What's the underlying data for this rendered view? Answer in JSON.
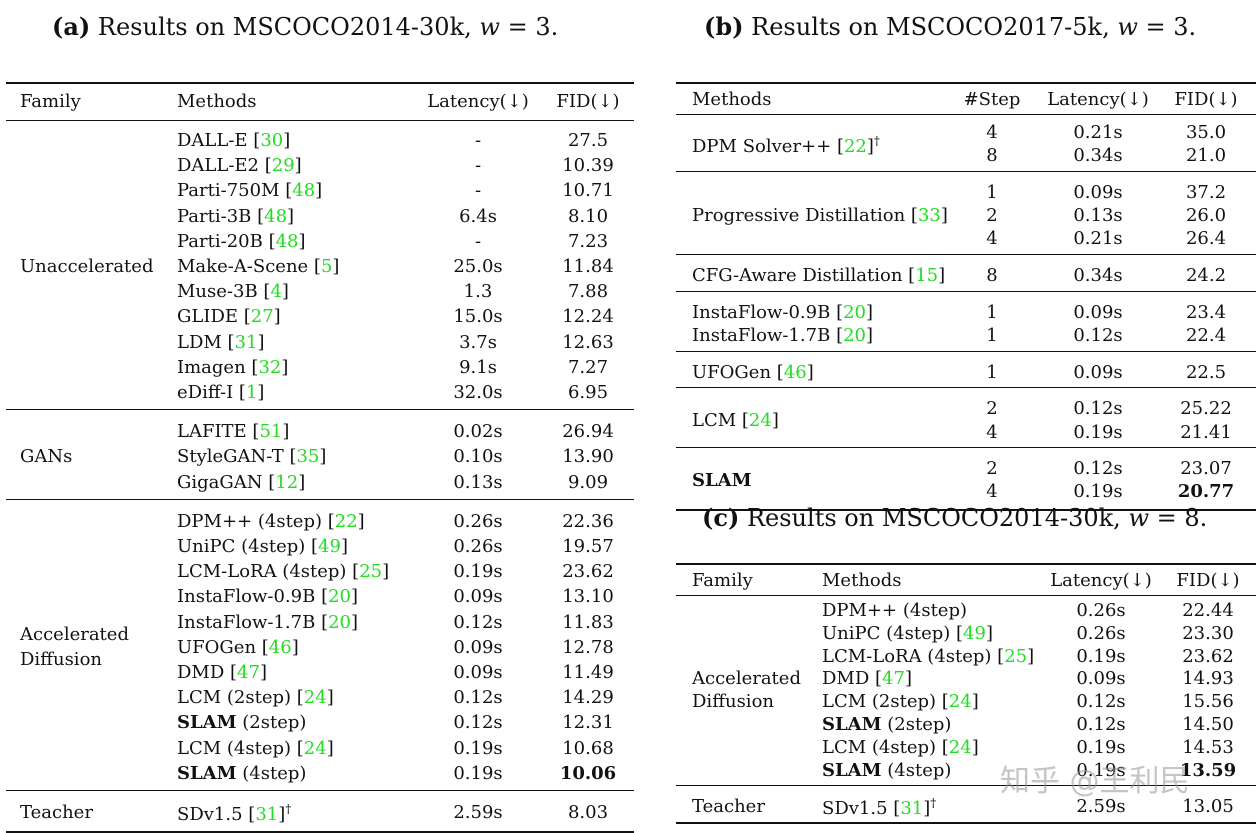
{
  "table_a": {
    "caption_tag": "(a)",
    "caption_text": "Results on MSCOCO2014-30k,",
    "caption_w": "w",
    "caption_eq": "= 3.",
    "headers": [
      "Family",
      "Methods",
      "Latency(↓)",
      "FID(↓)"
    ],
    "groups": [
      {
        "family": "Unaccelerated",
        "rows": [
          {
            "method": "DALL-E",
            "cite": "30",
            "latency": "-",
            "fid": "27.5"
          },
          {
            "method": "DALL-E2",
            "cite": "29",
            "latency": "-",
            "fid": "10.39"
          },
          {
            "method": "Parti-750M",
            "cite": "48",
            "latency": "-",
            "fid": "10.71"
          },
          {
            "method": "Parti-3B",
            "cite": "48",
            "latency": "6.4s",
            "fid": "8.10"
          },
          {
            "method": "Parti-20B",
            "cite": "48",
            "latency": "-",
            "fid": "7.23"
          },
          {
            "method": "Make-A-Scene",
            "cite": "5",
            "latency": "25.0s",
            "fid": "11.84"
          },
          {
            "method": "Muse-3B",
            "cite": "4",
            "latency": "1.3",
            "fid": "7.88"
          },
          {
            "method": "GLIDE",
            "cite": "27",
            "latency": "15.0s",
            "fid": "12.24"
          },
          {
            "method": "LDM",
            "cite": "31",
            "latency": "3.7s",
            "fid": "12.63"
          },
          {
            "method": "Imagen",
            "cite": "32",
            "latency": "9.1s",
            "fid": "7.27"
          },
          {
            "method": "eDiff-I",
            "cite": "1",
            "latency": "32.0s",
            "fid": "6.95"
          }
        ]
      },
      {
        "family": "GANs",
        "rows": [
          {
            "method": "LAFITE",
            "cite": "51",
            "latency": "0.02s",
            "fid": "26.94"
          },
          {
            "method": "StyleGAN-T",
            "cite": "35",
            "latency": "0.10s",
            "fid": "13.90"
          },
          {
            "method": "GigaGAN",
            "cite": "12",
            "latency": "0.13s",
            "fid": "9.09"
          }
        ]
      },
      {
        "family": "Accelerated",
        "family2": "Diffusion",
        "rows": [
          {
            "method": "DPM++ (4step)",
            "cite": "22",
            "latency": "0.26s",
            "fid": "22.36"
          },
          {
            "method": "UniPC (4step)",
            "cite": "49",
            "latency": "0.26s",
            "fid": "19.57"
          },
          {
            "method": "LCM-LoRA (4step)",
            "cite": "25",
            "latency": "0.19s",
            "fid": "23.62"
          },
          {
            "method": "InstaFlow-0.9B",
            "cite": "20",
            "latency": "0.09s",
            "fid": "13.10"
          },
          {
            "method": "InstaFlow-1.7B",
            "cite": "20",
            "latency": "0.12s",
            "fid": "11.83"
          },
          {
            "method": "UFOGen",
            "cite": "46",
            "latency": "0.09s",
            "fid": "12.78"
          },
          {
            "method": "DMD",
            "cite": "47",
            "latency": "0.09s",
            "fid": "11.49"
          },
          {
            "method": "LCM (2step)",
            "cite": "24",
            "latency": "0.12s",
            "fid": "14.29"
          },
          {
            "method_bold": "SLAM",
            "method_rest": " (2step)",
            "latency": "0.12s",
            "fid": "12.31"
          },
          {
            "method": "LCM (4step)",
            "cite": "24",
            "latency": "0.19s",
            "fid": "10.68"
          },
          {
            "method_bold": "SLAM",
            "method_rest": " (4step)",
            "latency": "0.19s",
            "fid": "10.06",
            "fid_bold": true
          }
        ]
      },
      {
        "family": "Teacher",
        "rows": [
          {
            "method": "SDv1.5",
            "cite": "31",
            "dagger": "†",
            "latency": "2.59s",
            "fid": "8.03"
          }
        ]
      }
    ]
  },
  "table_b": {
    "caption_tag": "(b)",
    "caption_text": "Results on MSCOCO2017-5k,",
    "caption_w": "w",
    "caption_eq": "= 3.",
    "headers": [
      "Methods",
      "#Step",
      "Latency(↓)",
      "FID(↓)"
    ],
    "groups": [
      {
        "method": "DPM Solver++",
        "cite": "22",
        "dagger": "†",
        "rows": [
          {
            "step": "4",
            "latency": "0.21s",
            "fid": "35.0"
          },
          {
            "step": "8",
            "latency": "0.34s",
            "fid": "21.0"
          }
        ]
      },
      {
        "method": "Progressive Distillation",
        "cite": "33",
        "rows": [
          {
            "step": "1",
            "latency": "0.09s",
            "fid": "37.2"
          },
          {
            "step": "2",
            "latency": "0.13s",
            "fid": "26.0"
          },
          {
            "step": "4",
            "latency": "0.21s",
            "fid": "26.4"
          }
        ]
      },
      {
        "method": "CFG-Aware Distillation",
        "cite": "15",
        "rows": [
          {
            "step": "8",
            "latency": "0.34s",
            "fid": "24.2"
          }
        ]
      },
      {
        "method": "InstaFlow-0.9B",
        "cite": "20",
        "method2": "InstaFlow-1.7B",
        "cite2": "20",
        "rows": [
          {
            "step": "1",
            "latency": "0.09s",
            "fid": "23.4"
          },
          {
            "step": "1",
            "latency": "0.12s",
            "fid": "22.4"
          }
        ]
      },
      {
        "method": "UFOGen",
        "cite": "46",
        "rows": [
          {
            "step": "1",
            "latency": "0.09s",
            "fid": "22.5"
          }
        ]
      },
      {
        "method": "LCM",
        "cite": "24",
        "rows": [
          {
            "step": "2",
            "latency": "0.12s",
            "fid": "25.22"
          },
          {
            "step": "4",
            "latency": "0.19s",
            "fid": "21.41"
          }
        ]
      },
      {
        "method_bold": "SLAM",
        "rows": [
          {
            "step": "2",
            "latency": "0.12s",
            "fid": "23.07"
          },
          {
            "step": "4",
            "latency": "0.19s",
            "fid": "20.77",
            "fid_bold": true
          }
        ]
      }
    ]
  },
  "table_c": {
    "caption_tag": "(c)",
    "caption_text": "Results on MSCOCO2014-30k,",
    "caption_w": "w",
    "caption_eq": "= 8.",
    "headers": [
      "Family",
      "Methods",
      "Latency(↓)",
      "FID(↓)"
    ],
    "groups": [
      {
        "family": "Accelerated",
        "family2": "Diffusion",
        "rows": [
          {
            "method": "DPM++ (4step)",
            "latency": "0.26s",
            "fid": "22.44"
          },
          {
            "method": "UniPC (4step)",
            "cite": "49",
            "latency": "0.26s",
            "fid": "23.30"
          },
          {
            "method": "LCM-LoRA (4step)",
            "cite": "25",
            "latency": "0.19s",
            "fid": "23.62"
          },
          {
            "method": "DMD",
            "cite": "47",
            "latency": "0.09s",
            "fid": "14.93"
          },
          {
            "method": "LCM (2step)",
            "cite": "24",
            "latency": "0.12s",
            "fid": "15.56"
          },
          {
            "method_bold": "SLAM",
            "method_rest": " (2step)",
            "latency": "0.12s",
            "fid": "14.50"
          },
          {
            "method": "LCM (4step)",
            "cite": "24",
            "latency": "0.19s",
            "fid": "14.53"
          },
          {
            "method_bold": "SLAM",
            "method_rest": " (4step)",
            "latency": "0.19s",
            "fid": "13.59",
            "fid_bold": true
          }
        ]
      },
      {
        "family": "Teacher",
        "rows": [
          {
            "method": "SDv1.5",
            "cite": "31",
            "dagger": "†",
            "latency": "2.59s",
            "fid": "13.05"
          }
        ]
      }
    ]
  },
  "watermark": "知乎 @王利民"
}
